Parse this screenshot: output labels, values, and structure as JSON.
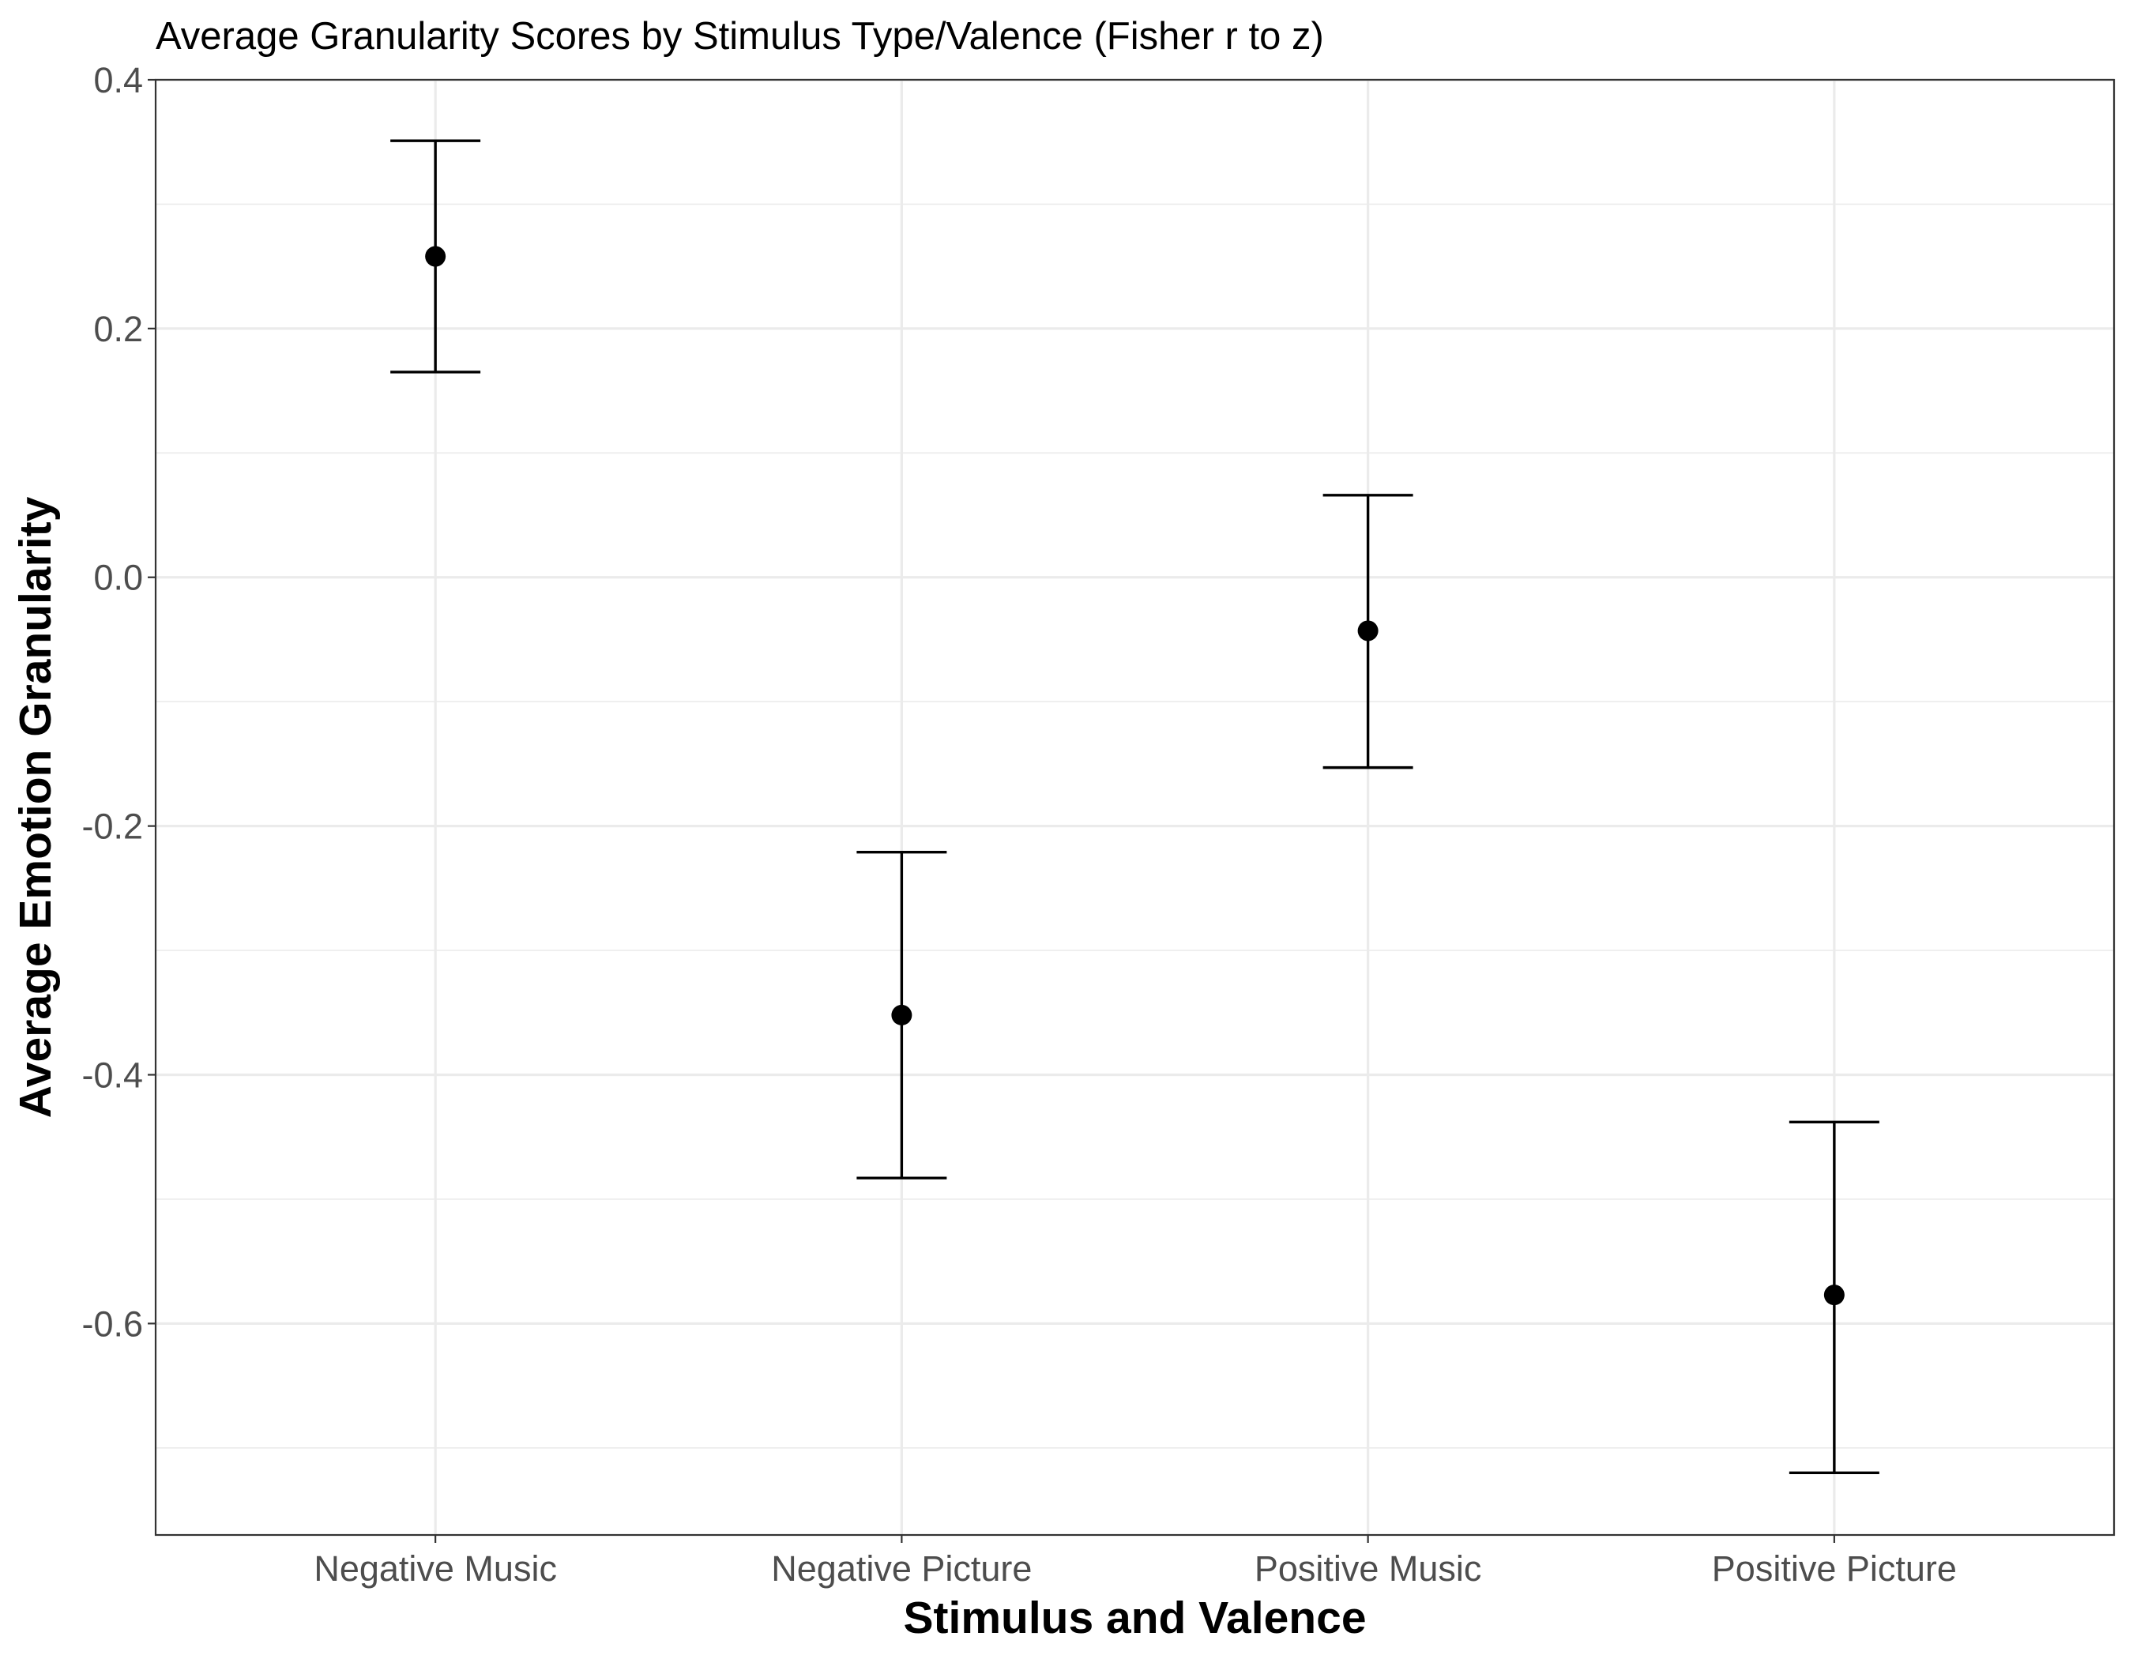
{
  "chart_data": {
    "type": "scatter",
    "title": "Average Granularity Scores by Stimulus Type/Valence (Fisher r to z)",
    "xlabel": "Stimulus and Valence",
    "ylabel": "Average Emotion Granularity",
    "categories": [
      "Negative Music",
      "Negative Picture",
      "Positive Music",
      "Positive Picture"
    ],
    "values": [
      0.258,
      -0.352,
      -0.043,
      -0.577
    ],
    "error_low": [
      0.165,
      -0.483,
      -0.153,
      -0.72
    ],
    "error_high": [
      0.351,
      -0.221,
      0.066,
      -0.438
    ],
    "ylim": [
      -0.77,
      0.4
    ],
    "yticks": [
      0.4,
      0.2,
      0.0,
      -0.2,
      -0.4,
      -0.6
    ],
    "ytick_labels": [
      "0.4",
      "0.2",
      "0.0",
      "-0.2",
      "-0.4",
      "-0.6"
    ],
    "grid": true,
    "legend": "none",
    "colors": {
      "points": "#000000",
      "grid": "#ebebeb",
      "tick_text": "#4d4d4d"
    }
  }
}
